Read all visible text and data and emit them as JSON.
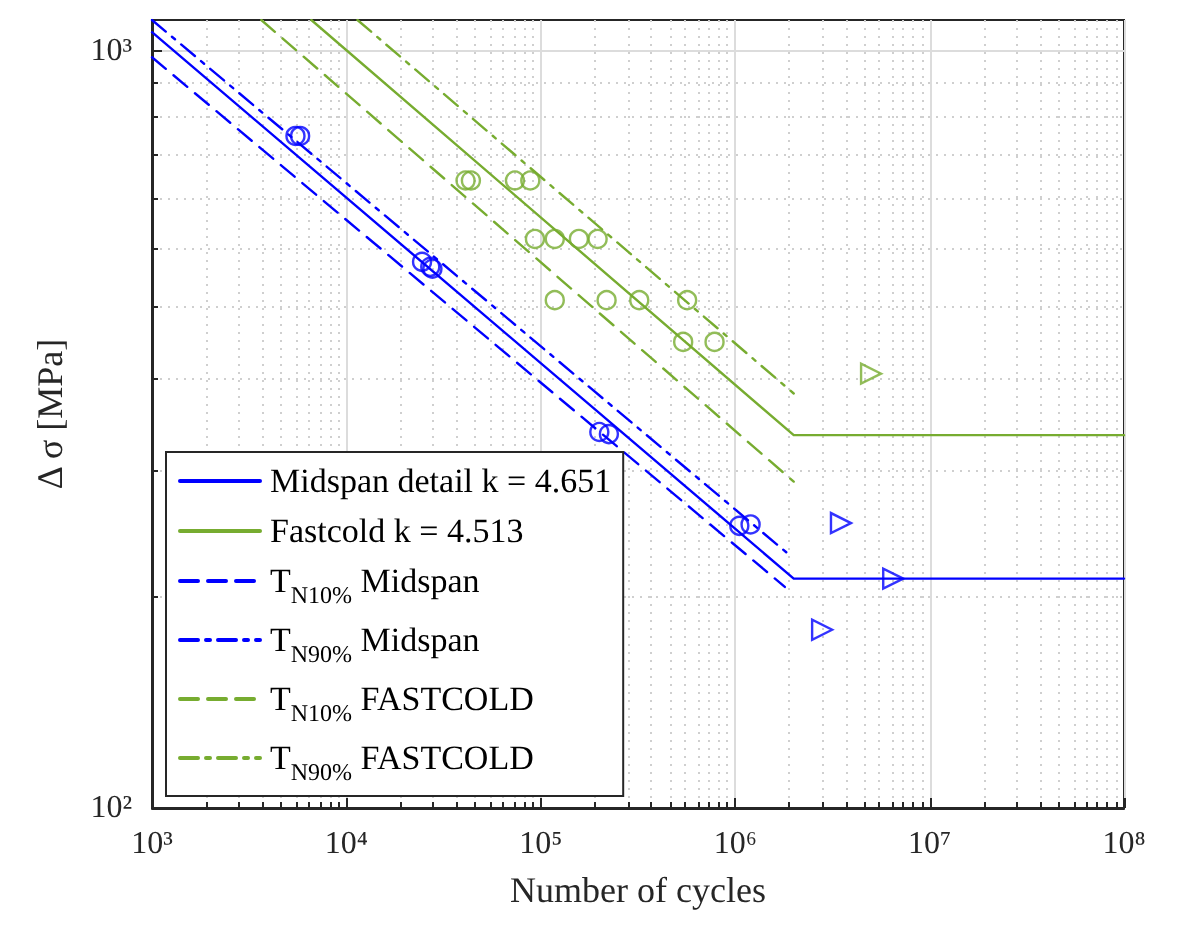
{
  "chart_data": {
    "type": "line",
    "xlabel": "Number of cycles",
    "ylabel": "Δ σ [MPa]",
    "log": "xy",
    "grid": true,
    "legend": "bottom left",
    "xlim": [
      1000,
      100000000
    ],
    "ylim": [
      100,
      1100
    ],
    "xticks": [
      {
        "value": 1000,
        "label": "10³"
      },
      {
        "value": 10000,
        "label": "10⁴"
      },
      {
        "value": 100000,
        "label": "10⁵"
      },
      {
        "value": 1000000,
        "label": "10⁶"
      },
      {
        "value": 10000000,
        "label": "10⁷"
      },
      {
        "value": 100000000,
        "label": "10⁸"
      }
    ],
    "yticks": [
      {
        "value": 100,
        "label": "10²"
      },
      {
        "value": 1000,
        "label": "10³"
      }
    ],
    "series": [
      {
        "name": "Midspan detail k = 4.651",
        "color": "#0000ff",
        "line_style": "solid",
        "marker": "none",
        "x": [
          1000,
          2000000,
          100000000
        ],
        "values": [
          1060,
          201,
          201
        ]
      },
      {
        "name": "Fastcold k = 4.513",
        "color": "#77ac30",
        "line_style": "solid",
        "marker": "none",
        "x": [
          6600,
          2000000,
          100000000
        ],
        "values": [
          1100,
          311,
          311
        ]
      },
      {
        "name": "T$_{N10%}$ Midspan",
        "color": "#0000ff",
        "line_style": "dashed",
        "marker": "none",
        "x": [
          1000,
          1800000
        ],
        "values": [
          982,
          196
        ]
      },
      {
        "name": "T$_{N90%}$ Midspan",
        "color": "#0000ff",
        "line_style": "dashdot",
        "marker": "none",
        "x": [
          1000,
          1860000
        ],
        "values": [
          1100,
          217
        ]
      },
      {
        "name": "T$_{N10%}$ FASTCOLD",
        "color": "#77ac30",
        "line_style": "dashed",
        "marker": "none",
        "x": [
          3650,
          2000000
        ],
        "values": [
          1100,
          270
        ]
      },
      {
        "name": "T$_{N90%}$ FASTCOLD",
        "color": "#77ac30",
        "line_style": "dashdot",
        "marker": "none",
        "x": [
          11400,
          2000000
        ],
        "values": [
          1100,
          353
        ]
      },
      {
        "type": "scatter",
        "color": "#0000ff",
        "marker": "circle",
        "x": [
          5470,
          5780,
          24500,
          27000,
          27700,
          200000,
          224000,
          1050000,
          1200000
        ],
        "values": [
          773,
          773,
          527,
          519,
          516,
          314,
          312,
          236,
          237
        ]
      },
      {
        "type": "scatter",
        "color": "#0000ff",
        "marker": "triangle",
        "x": [
          3500000,
          6500000,
          2800000
        ],
        "values": [
          238,
          201,
          172
        ]
      },
      {
        "type": "scatter",
        "color": "#77ac30",
        "marker": "circle",
        "x": [
          41000,
          43700,
          73600,
          88300,
          93300,
          118000,
          157000,
          196000,
          118000,
          218000,
          321000,
          566000,
          540000,
          783000
        ],
        "values": [
          675,
          675,
          675,
          675,
          565,
          565,
          565,
          565,
          469,
          469,
          469,
          469,
          413,
          413
        ]
      },
      {
        "type": "scatter",
        "color": "#77ac30",
        "marker": "triangle",
        "x": [
          5000000
        ],
        "values": [
          375
        ]
      }
    ]
  }
}
